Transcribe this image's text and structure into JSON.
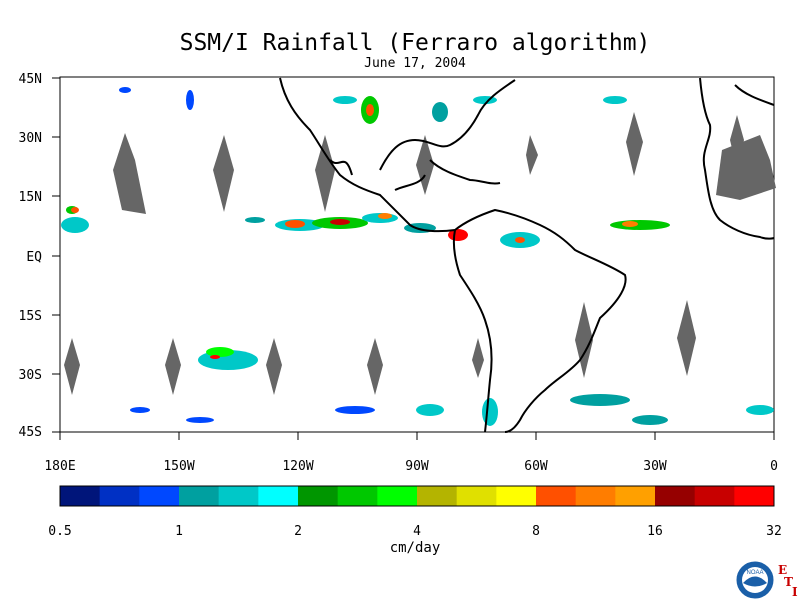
{
  "title": "SSM/I Rainfall (Ferraro algorithm)",
  "date": "June 17, 2004",
  "lat_labels": [
    "45N",
    "30N",
    "15N",
    "EQ",
    "15S",
    "30S",
    "45S"
  ],
  "lon_labels": [
    "180E",
    "150W",
    "120W",
    "90W",
    "60W",
    "30W",
    "0"
  ],
  "colorbar": {
    "colors": [
      "#00157a",
      "#0030c4",
      "#0048ff",
      "#00a0a0",
      "#00c8c8",
      "#00ffff",
      "#009600",
      "#00c800",
      "#00ff00",
      "#b4b400",
      "#e0e000",
      "#ffff00",
      "#ff5000",
      "#ff7d00",
      "#ffa000",
      "#960000",
      "#c80000",
      "#ff0000"
    ],
    "tick_labels": [
      "0.5",
      "1",
      "2",
      "4",
      "8",
      "16",
      "32"
    ],
    "unit": "cm/day"
  },
  "logo": {
    "text": "NOAA",
    "side_letters": [
      "E",
      "T",
      "I"
    ],
    "color": "#1a5fa8"
  },
  "colors": {
    "land_gap": "#666666",
    "coast": "#000000"
  }
}
